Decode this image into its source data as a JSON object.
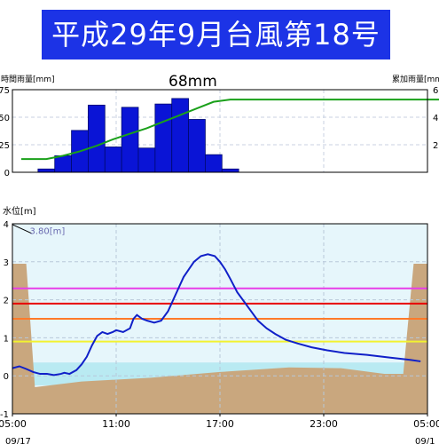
{
  "title": "平成29年9月台風第18号",
  "chart_data": [
    {
      "type": "bar",
      "rain_unit_label": "時間雨量[mm]",
      "cum_unit_label": "累加雨量[mm]",
      "total_label": "68mm",
      "y_ticks": [
        0,
        25,
        50,
        75
      ],
      "y_ticks_right": [
        "6",
        "4",
        "2"
      ],
      "ylim": [
        0,
        75
      ],
      "hourly_rain": [
        0,
        3,
        15,
        38,
        61,
        23,
        59,
        22,
        62,
        67,
        48,
        16,
        3,
        0
      ],
      "cumulative": [
        [
          0,
          12
        ],
        [
          1.5,
          12
        ],
        [
          2.5,
          15
        ],
        [
          3.5,
          19
        ],
        [
          4.5,
          24
        ],
        [
          5.5,
          30
        ],
        [
          6.5,
          35
        ],
        [
          7.5,
          40
        ],
        [
          8.5,
          46
        ],
        [
          9.5,
          52
        ],
        [
          10.5,
          58
        ],
        [
          11.5,
          64
        ],
        [
          12.5,
          66
        ],
        [
          14,
          66
        ],
        [
          34,
          66
        ]
      ],
      "grid": true
    },
    {
      "type": "area",
      "ylabel": "水位[m]",
      "y_ticks": [
        -1,
        0,
        1,
        2,
        3,
        4
      ],
      "ylim": [
        -1,
        4
      ],
      "x_ticks": [
        "05:00",
        "11:00",
        "17:00",
        "23:00",
        "05:00"
      ],
      "x_date_labels": [
        "09/17",
        "09/1"
      ],
      "bank_label": "3.80[m]",
      "threshold_levels": [
        {
          "value": 2.3,
          "color": "#e83de8"
        },
        {
          "value": 1.9,
          "color": "#e80000"
        },
        {
          "value": 1.5,
          "color": "#ff7a2a"
        },
        {
          "value": 0.9,
          "color": "#f2f230"
        }
      ],
      "water_level": [
        [
          0.0,
          0.2
        ],
        [
          0.4,
          0.25
        ],
        [
          0.8,
          0.18
        ],
        [
          1.2,
          0.1
        ],
        [
          1.6,
          0.05
        ],
        [
          2.0,
          0.05
        ],
        [
          2.4,
          0.02
        ],
        [
          2.8,
          0.05
        ],
        [
          3.0,
          0.08
        ],
        [
          3.3,
          0.05
        ],
        [
          3.7,
          0.15
        ],
        [
          4.0,
          0.3
        ],
        [
          4.3,
          0.5
        ],
        [
          4.6,
          0.8
        ],
        [
          4.9,
          1.05
        ],
        [
          5.2,
          1.15
        ],
        [
          5.5,
          1.1
        ],
        [
          5.8,
          1.15
        ],
        [
          6.0,
          1.2
        ],
        [
          6.4,
          1.15
        ],
        [
          6.8,
          1.25
        ],
        [
          7.0,
          1.5
        ],
        [
          7.2,
          1.6
        ],
        [
          7.5,
          1.5
        ],
        [
          7.8,
          1.45
        ],
        [
          8.2,
          1.4
        ],
        [
          8.6,
          1.45
        ],
        [
          9.0,
          1.7
        ],
        [
          9.3,
          2.0
        ],
        [
          9.6,
          2.3
        ],
        [
          9.9,
          2.6
        ],
        [
          10.2,
          2.8
        ],
        [
          10.5,
          3.0
        ],
        [
          10.9,
          3.15
        ],
        [
          11.3,
          3.2
        ],
        [
          11.7,
          3.15
        ],
        [
          12.0,
          3.0
        ],
        [
          12.3,
          2.8
        ],
        [
          12.6,
          2.55
        ],
        [
          13.0,
          2.2
        ],
        [
          13.4,
          1.95
        ],
        [
          13.8,
          1.7
        ],
        [
          14.2,
          1.45
        ],
        [
          14.7,
          1.25
        ],
        [
          15.2,
          1.1
        ],
        [
          15.8,
          0.95
        ],
        [
          16.5,
          0.85
        ],
        [
          17.3,
          0.75
        ],
        [
          18.2,
          0.67
        ],
        [
          19.2,
          0.6
        ],
        [
          20.5,
          0.55
        ],
        [
          21.8,
          0.48
        ],
        [
          23.0,
          0.42
        ],
        [
          23.6,
          0.38
        ]
      ],
      "grid": true
    }
  ]
}
